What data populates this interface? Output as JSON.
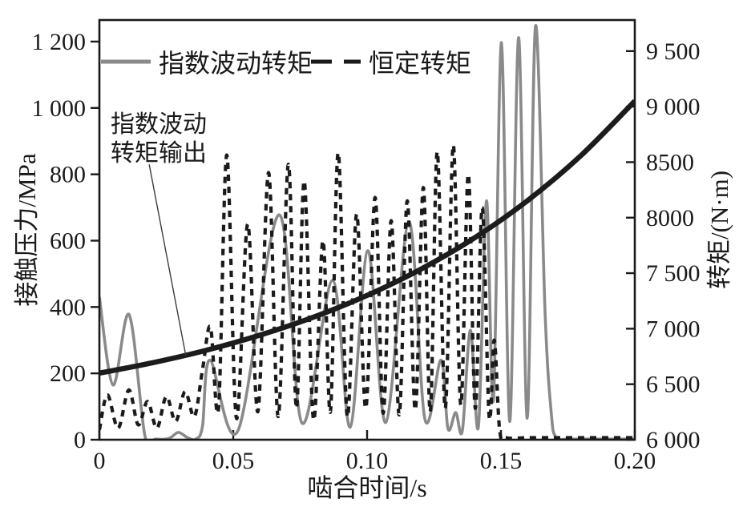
{
  "figure": {
    "background": "#ffffff",
    "frame_color": "#1a1a1a"
  },
  "chart_data": {
    "type": "line",
    "title": "",
    "x_axis": {
      "label": "啮合时间/s",
      "range": [
        0,
        0.2
      ],
      "ticks": [
        {
          "v": 0,
          "label": "0"
        },
        {
          "v": 0.05,
          "label": "0.05"
        },
        {
          "v": 0.1,
          "label": "0.10"
        },
        {
          "v": 0.15,
          "label": "0.15"
        },
        {
          "v": 0.2,
          "label": "0.20"
        }
      ]
    },
    "y_left": {
      "label": "接触压力/MPa",
      "range": [
        0,
        1265
      ],
      "ticks": [
        {
          "v": 0,
          "label": "0"
        },
        {
          "v": 200,
          "label": "200"
        },
        {
          "v": 400,
          "label": "400"
        },
        {
          "v": 600,
          "label": "600"
        },
        {
          "v": 800,
          "label": "800"
        },
        {
          "v": 1000,
          "label": "1 000"
        },
        {
          "v": 1200,
          "label": "1 200"
        }
      ]
    },
    "y_right": {
      "label": "转矩/(N·m)",
      "range": [
        6000,
        9780
      ],
      "ticks": [
        {
          "v": 6000,
          "label": "6 000"
        },
        {
          "v": 6500,
          "label": "6 500"
        },
        {
          "v": 7000,
          "label": "7 000"
        },
        {
          "v": 7500,
          "label": "7 500"
        },
        {
          "v": 8000,
          "label": "8000"
        },
        {
          "v": 8500,
          "label": "8500"
        },
        {
          "v": 9000,
          "label": "9 000"
        },
        {
          "v": 9500,
          "label": "9 500"
        }
      ]
    },
    "legend": {
      "position": "top-inside",
      "entries": [
        {
          "label": "指数波动转矩",
          "swatch": "solid-gray"
        },
        {
          "label": "恒定转矩",
          "swatch": "dashed-black"
        }
      ]
    },
    "series": [
      {
        "name": "指数波动转矩",
        "axis": "left",
        "line": "solid",
        "color": "#8a8a8a",
        "width": 3.6,
        "points": [
          [
            0,
            430
          ],
          [
            0.0051,
            165
          ],
          [
            0.0111,
            377
          ],
          [
            0.017,
            12
          ],
          [
            0.021,
            2
          ],
          [
            0.026,
            4
          ],
          [
            0.0295,
            22
          ],
          [
            0.033,
            6
          ],
          [
            0.036,
            2
          ],
          [
            0.0385,
            40
          ],
          [
            0.0413,
            240
          ],
          [
            0.0518,
            28
          ],
          [
            0.0671,
            678
          ],
          [
            0.0757,
            50
          ],
          [
            0.0871,
            480
          ],
          [
            0.0937,
            38
          ],
          [
            0.1003,
            570
          ],
          [
            0.107,
            52
          ],
          [
            0.1156,
            657
          ],
          [
            0.1216,
            62
          ],
          [
            0.1276,
            240
          ],
          [
            0.1302,
            34
          ],
          [
            0.1331,
            82
          ],
          [
            0.1356,
            28
          ],
          [
            0.1386,
            330
          ],
          [
            0.1416,
            40
          ],
          [
            0.1446,
            720
          ],
          [
            0.1472,
            120
          ],
          [
            0.1502,
            1197
          ],
          [
            0.1533,
            55
          ],
          [
            0.1566,
            1212
          ],
          [
            0.1598,
            65
          ],
          [
            0.1629,
            1246
          ],
          [
            0.1665,
            380
          ],
          [
            0.1688,
            80
          ],
          [
            0.1705,
            8
          ],
          [
            0.175,
            2
          ],
          [
            0.18,
            2
          ],
          [
            0.19,
            2
          ],
          [
            0.2,
            2
          ]
        ]
      },
      {
        "name": "恒定转矩",
        "axis": "left",
        "line": "dashed",
        "color": "#1a1a1a",
        "width": 4.2,
        "dash": "8 7",
        "points": [
          [
            0,
            30
          ],
          [
            0.003,
            135
          ],
          [
            0.007,
            35
          ],
          [
            0.011,
            150
          ],
          [
            0.0145,
            45
          ],
          [
            0.018,
            115
          ],
          [
            0.0215,
            35
          ],
          [
            0.025,
            130
          ],
          [
            0.0285,
            55
          ],
          [
            0.032,
            145
          ],
          [
            0.0355,
            70
          ],
          [
            0.0385,
            210
          ],
          [
            0.0415,
            340
          ],
          [
            0.0445,
            95
          ],
          [
            0.0476,
            858
          ],
          [
            0.0512,
            65
          ],
          [
            0.0554,
            650
          ],
          [
            0.0592,
            85
          ],
          [
            0.0632,
            805
          ],
          [
            0.0668,
            70
          ],
          [
            0.0706,
            830
          ],
          [
            0.0736,
            95
          ],
          [
            0.0765,
            780
          ],
          [
            0.08,
            60
          ],
          [
            0.0835,
            600
          ],
          [
            0.0863,
            85
          ],
          [
            0.0892,
            865
          ],
          [
            0.0926,
            70
          ],
          [
            0.0961,
            680
          ],
          [
            0.0995,
            95
          ],
          [
            0.103,
            730
          ],
          [
            0.106,
            80
          ],
          [
            0.109,
            660
          ],
          [
            0.112,
            75
          ],
          [
            0.115,
            720
          ],
          [
            0.118,
            90
          ],
          [
            0.121,
            760
          ],
          [
            0.1236,
            85
          ],
          [
            0.1262,
            868
          ],
          [
            0.1292,
            95
          ],
          [
            0.1322,
            888
          ],
          [
            0.135,
            105
          ],
          [
            0.1378,
            800
          ],
          [
            0.1404,
            95
          ],
          [
            0.143,
            700
          ],
          [
            0.1456,
            70
          ],
          [
            0.1475,
            300
          ],
          [
            0.1495,
            30
          ],
          [
            0.152,
            6
          ],
          [
            0.16,
            6
          ],
          [
            0.17,
            6
          ],
          [
            0.18,
            6
          ],
          [
            0.19,
            6
          ],
          [
            0.2,
            6
          ]
        ]
      },
      {
        "name": "指数波动转矩输出",
        "axis": "right",
        "line": "solid",
        "color": "#1c1c1c",
        "width": 6.5,
        "points": [
          [
            0,
            6600
          ],
          [
            0.02,
            6694
          ],
          [
            0.04,
            6806
          ],
          [
            0.06,
            6942
          ],
          [
            0.08,
            7104
          ],
          [
            0.1,
            7300
          ],
          [
            0.12,
            7535
          ],
          [
            0.14,
            7816
          ],
          [
            0.16,
            8155
          ],
          [
            0.18,
            8562
          ],
          [
            0.2,
            9050
          ]
        ]
      }
    ],
    "annotation": {
      "lines": [
        "指数波动",
        "转矩输出"
      ],
      "points_to_series": "指数波动转矩输出",
      "leader": {
        "from": [
          0.0186,
          830
        ],
        "to": [
          0.0323,
          253
        ]
      },
      "leader_color": "#3c3c3c"
    },
    "grid": false
  }
}
